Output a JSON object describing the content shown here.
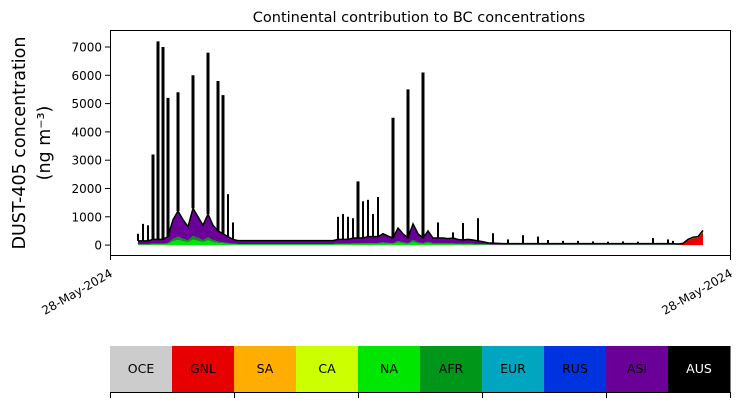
{
  "chart_data": {
    "type": "area",
    "stacked": true,
    "title": "Continental contribution to BC concentrations",
    "ylabel_line1": "DUST-405 concentration",
    "ylabel_line2": "(ng m⁻³)",
    "xlabel": "",
    "x_tick_labels": [
      "28-May-2024",
      "28-May-2024"
    ],
    "ylim": [
      -350,
      7600
    ],
    "y_ticks": [
      0,
      1000,
      2000,
      3000,
      4000,
      5000,
      6000,
      7000
    ],
    "grid": false,
    "colorbar": {
      "position": "bottom",
      "categories": [
        "OCE",
        "GNL",
        "SA",
        "CA",
        "NA",
        "AFR",
        "EUR",
        "RUS",
        "ASI",
        "AUS"
      ],
      "colors": [
        "#cccccc",
        "#e60000",
        "#ffad00",
        "#ccff00",
        "#00e600",
        "#00961a",
        "#00a6bf",
        "#0033e0",
        "#6b0099",
        "#000000"
      ]
    },
    "series": [
      {
        "name": "GNL",
        "values": [
          0,
          0,
          0,
          0,
          0,
          0,
          0,
          0,
          0,
          0,
          0,
          0,
          0,
          0,
          0,
          0,
          0,
          0,
          0,
          0,
          0,
          0,
          0,
          0,
          0,
          0,
          0,
          0,
          0,
          0,
          0,
          0,
          0,
          0,
          0,
          0,
          0,
          0,
          0,
          0,
          0,
          0,
          0,
          0,
          0,
          0,
          0,
          0,
          0,
          0,
          0,
          0,
          0,
          0,
          0,
          0,
          0,
          0,
          0,
          0,
          0,
          0,
          0,
          0,
          0,
          0,
          0,
          0,
          0,
          0,
          0,
          0,
          0,
          0,
          0,
          0,
          0,
          0,
          0,
          0,
          0,
          0,
          0,
          0,
          0,
          0,
          0,
          0,
          0,
          0,
          0,
          0,
          0,
          0,
          0,
          0,
          0,
          0,
          0,
          0,
          0,
          0,
          0,
          0,
          0,
          0,
          0,
          0,
          0,
          50,
          170,
          240,
          260,
          460
        ]
      },
      {
        "name": "NA",
        "values": [
          20,
          20,
          20,
          30,
          30,
          30,
          45,
          135,
          180,
          135,
          100,
          195,
          150,
          105,
          165,
          105,
          75,
          60,
          45,
          30,
          25,
          25,
          25,
          25,
          25,
          25,
          25,
          25,
          25,
          25,
          25,
          25,
          25,
          25,
          25,
          25,
          25,
          25,
          25,
          25,
          30,
          30,
          30,
          40,
          40,
          40,
          45,
          45,
          45,
          60,
          50,
          40,
          90,
          60,
          40,
          110,
          60,
          40,
          75,
          40,
          40,
          40,
          35,
          40,
          30,
          25,
          30,
          25,
          20,
          20,
          15,
          10,
          10,
          10,
          10,
          10,
          10,
          10,
          10,
          10,
          10,
          10,
          10,
          10,
          10,
          10,
          10,
          10,
          10,
          10,
          10,
          10,
          10,
          10,
          10,
          10,
          10,
          10,
          10,
          10,
          10,
          10,
          10,
          10,
          10,
          10,
          10,
          10,
          5,
          5,
          15,
          20,
          20,
          30
        ]
      },
      {
        "name": "AFR",
        "values": [
          15,
          15,
          15,
          20,
          20,
          20,
          30,
          90,
          120,
          90,
          65,
          130,
          100,
          70,
          110,
          70,
          50,
          40,
          30,
          20,
          15,
          15,
          15,
          15,
          15,
          15,
          15,
          15,
          15,
          15,
          15,
          15,
          15,
          15,
          15,
          15,
          15,
          15,
          15,
          15,
          20,
          20,
          20,
          25,
          25,
          25,
          30,
          30,
          30,
          40,
          30,
          25,
          60,
          40,
          25,
          75,
          40,
          25,
          50,
          25,
          25,
          25,
          25,
          25,
          20,
          20,
          20,
          20,
          15,
          10,
          10,
          5,
          5,
          5,
          5,
          5,
          5,
          5,
          5,
          5,
          5,
          5,
          5,
          5,
          5,
          5,
          5,
          5,
          5,
          5,
          5,
          5,
          5,
          5,
          5,
          5,
          5,
          5,
          5,
          5,
          5,
          5,
          5,
          5,
          5,
          5,
          5,
          5,
          5,
          0,
          0,
          0,
          0,
          0
        ]
      },
      {
        "name": "ASI",
        "values": [
          115,
          115,
          115,
          150,
          150,
          150,
          225,
          675,
          900,
          675,
          485,
          975,
          750,
          525,
          825,
          525,
          375,
          300,
          225,
          150,
          120,
          120,
          120,
          120,
          120,
          120,
          120,
          120,
          120,
          120,
          120,
          120,
          120,
          120,
          120,
          120,
          120,
          120,
          120,
          120,
          150,
          150,
          150,
          185,
          185,
          185,
          225,
          225,
          225,
          300,
          240,
          185,
          450,
          300,
          185,
          565,
          300,
          185,
          375,
          185,
          185,
          185,
          170,
          185,
          150,
          135,
          150,
          135,
          115,
          90,
          55,
          55,
          45,
          35,
          35,
          35,
          35,
          35,
          35,
          35,
          35,
          35,
          35,
          35,
          35,
          35,
          35,
          35,
          35,
          35,
          35,
          35,
          35,
          35,
          35,
          35,
          35,
          35,
          35,
          35,
          35,
          35,
          35,
          35,
          35,
          35,
          35,
          35,
          30,
          5,
          15,
          20,
          20,
          30
        ]
      },
      {
        "name": "AUS",
        "values": [
          250,
          600,
          550,
          3000,
          7000,
          6800,
          4900,
          0,
          4200,
          0,
          0,
          4700,
          0,
          0,
          5700,
          0,
          5300,
          4900,
          1500,
          600,
          0,
          0,
          0,
          0,
          0,
          0,
          0,
          0,
          0,
          0,
          0,
          0,
          0,
          0,
          0,
          0,
          0,
          0,
          0,
          0,
          800,
          900,
          800,
          700,
          2000,
          1300,
          1300,
          800,
          1400,
          0,
          0,
          4250,
          0,
          0,
          5250,
          0,
          0,
          5850,
          0,
          0,
          550,
          0,
          0,
          200,
          0,
          600,
          0,
          0,
          800,
          0,
          0,
          350,
          0,
          0,
          150,
          0,
          0,
          300,
          0,
          0,
          250,
          0,
          130,
          0,
          0,
          100,
          0,
          0,
          100,
          0,
          0,
          80,
          0,
          0,
          70,
          0,
          0,
          80,
          0,
          0,
          70,
          0,
          0,
          200,
          0,
          0,
          150,
          100,
          0,
          0,
          0,
          0,
          0,
          0
        ]
      }
    ]
  }
}
